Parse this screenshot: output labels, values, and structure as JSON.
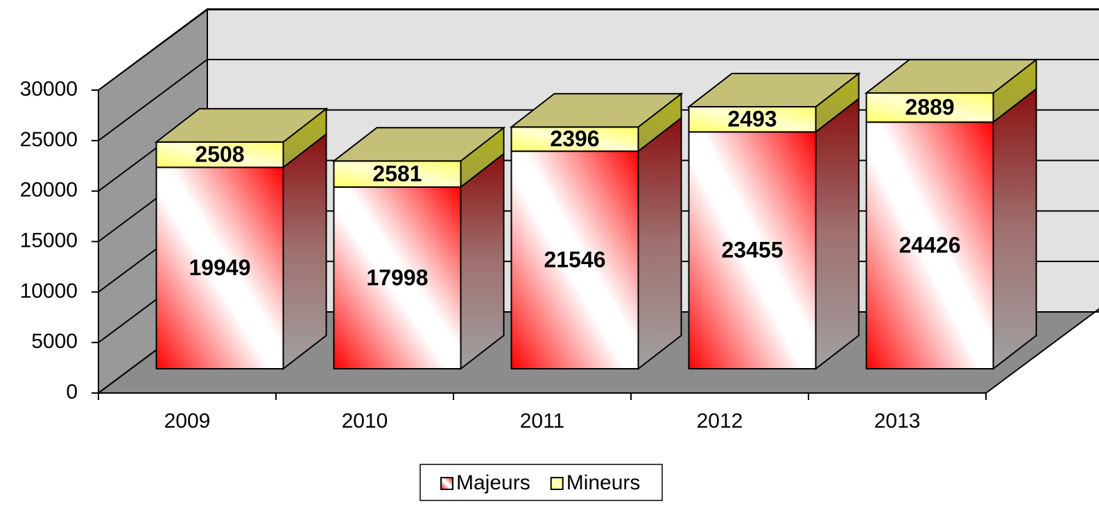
{
  "chart_data": {
    "type": "bar3d_stacked",
    "categories": [
      "2009",
      "2010",
      "2011",
      "2012",
      "2013"
    ],
    "series": [
      {
        "name": "Majeurs",
        "color": "#ff0000",
        "values": [
          19949,
          17998,
          21546,
          23455,
          24426
        ]
      },
      {
        "name": "Mineurs",
        "color": "#ffff66",
        "values": [
          2508,
          2581,
          2396,
          2493,
          2889
        ]
      }
    ],
    "ylim": [
      0,
      30000
    ],
    "yticks": [
      0,
      5000,
      10000,
      15000,
      20000,
      25000,
      30000
    ],
    "grid": true,
    "legend": "bottom"
  }
}
